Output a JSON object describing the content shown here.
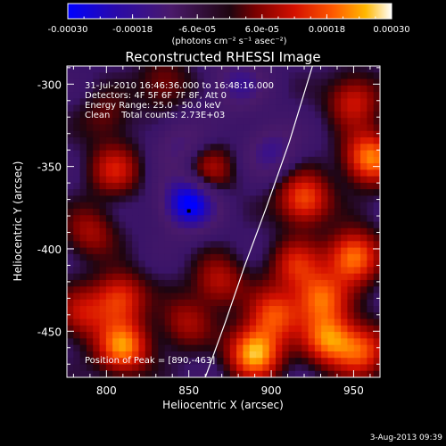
{
  "chart_data": {
    "type": "heatmap",
    "title": "Reconstructed RHESSI Image",
    "xlabel": "Heliocentric X (arcsec)",
    "ylabel": "Heliocentric Y (arcsec)",
    "x_ticks": [
      "800",
      "850",
      "900",
      "950"
    ],
    "y_ticks": [
      "-300",
      "-350",
      "-400",
      "-450"
    ],
    "xlim": [
      776,
      966
    ],
    "ylim": [
      -478,
      -289
    ],
    "colorbar": {
      "range": [
        -0.0003,
        0.0003
      ],
      "tick_labels": [
        "-0.00030",
        "-0.00018",
        "-6.0e-05",
        "6.0e-05",
        "0.00018",
        "0.00030"
      ],
      "units": "(photons cm⁻² s⁻¹ asec⁻²)"
    },
    "annotations": [
      "31-Jul-2010 16:46:36.000 to 16:48:16.000",
      "Detectors: 4F 5F 6F 7F 8F, Att 0",
      "Energy Range: 25.0 - 50.0 keV",
      "Clean    Total counts: 2.73E+03"
    ],
    "peak_label": "Position of Peak = [890,-463]",
    "peak": [
      890,
      -463
    ],
    "min_marker": [
      850,
      -377
    ],
    "limb_arc": [
      [
        860,
        -478
      ],
      [
        872,
        -445
      ],
      [
        884,
        -410
      ],
      [
        897,
        -375
      ],
      [
        911,
        -335
      ],
      [
        925,
        -289
      ]
    ],
    "blobs": [
      {
        "x": 850,
        "y": -372,
        "v": -0.00028
      },
      {
        "x": 845,
        "y": -337,
        "v": -0.0001
      },
      {
        "x": 805,
        "y": -352,
        "v": 0.00015
      },
      {
        "x": 862,
        "y": -352,
        "v": 0.00013
      },
      {
        "x": 790,
        "y": -390,
        "v": 0.00012
      },
      {
        "x": 808,
        "y": -430,
        "v": 0.0002
      },
      {
        "x": 810,
        "y": -460,
        "v": 0.00026
      },
      {
        "x": 848,
        "y": -445,
        "v": 0.00012
      },
      {
        "x": 868,
        "y": -420,
        "v": 0.00014
      },
      {
        "x": 890,
        "y": -463,
        "v": 0.0003
      },
      {
        "x": 902,
        "y": -440,
        "v": 0.0002
      },
      {
        "x": 935,
        "y": -455,
        "v": 0.00024
      },
      {
        "x": 955,
        "y": -462,
        "v": 0.0002
      },
      {
        "x": 930,
        "y": -430,
        "v": 0.00022
      },
      {
        "x": 950,
        "y": -405,
        "v": 0.00026
      },
      {
        "x": 960,
        "y": -345,
        "v": 0.00026
      },
      {
        "x": 920,
        "y": -370,
        "v": 0.00022
      },
      {
        "x": 950,
        "y": -310,
        "v": 0.00016
      },
      {
        "x": 915,
        "y": -410,
        "v": 0.00016
      },
      {
        "x": 900,
        "y": -340,
        "v": -0.00012
      },
      {
        "x": 880,
        "y": -300,
        "v": -0.00012
      },
      {
        "x": 800,
        "y": -320,
        "v": 8e-05
      },
      {
        "x": 835,
        "y": -300,
        "v": 0.0001
      },
      {
        "x": 785,
        "y": -440,
        "v": 0.00014
      }
    ]
  },
  "footer": {
    "date_stamp": "3-Aug-2013 09:39"
  }
}
